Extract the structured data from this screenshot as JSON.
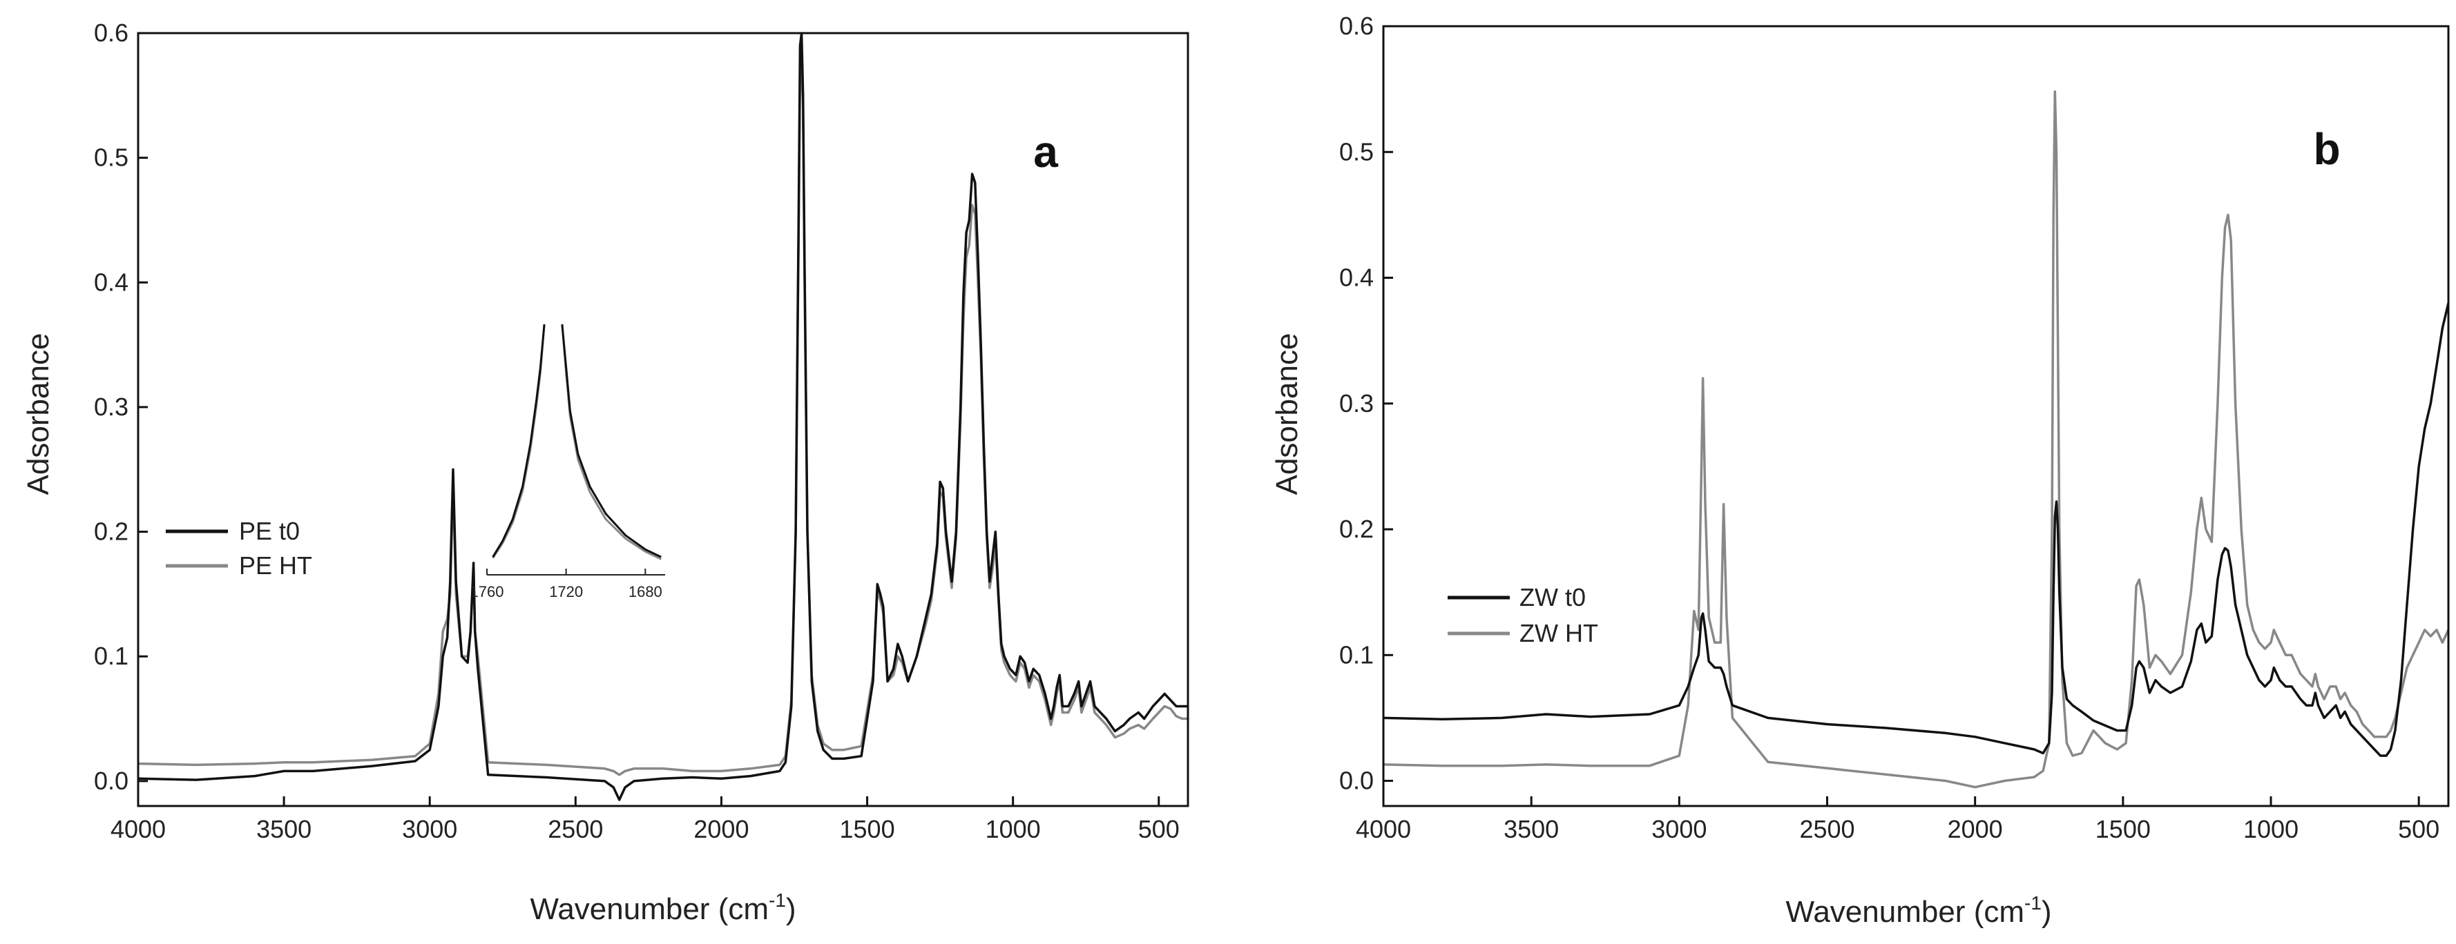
{
  "chart_data": [
    {
      "type": "line",
      "panel": "a",
      "xlabel_main": "Wavenumber (cm",
      "xlabel_sup": "-1",
      "xlabel_close": ")",
      "ylabel": "Adsorbance",
      "xlim": [
        4000,
        400
      ],
      "ylim": [
        -0.02,
        0.6
      ],
      "xticks": [
        4000,
        3500,
        3000,
        2500,
        2000,
        1500,
        1000,
        500
      ],
      "yticks": [
        0.0,
        0.1,
        0.2,
        0.3,
        0.4,
        0.5,
        0.6
      ],
      "ytick_labels": [
        "0.0",
        "0.1",
        "0.2",
        "0.3",
        "0.4",
        "0.5",
        "0.6"
      ],
      "legend_position": "middle-left",
      "series": [
        {
          "name": "PE t0",
          "color": "#111111",
          "x": [
            4000,
            3800,
            3600,
            3500,
            3400,
            3200,
            3050,
            3000,
            2970,
            2955,
            2940,
            2930,
            2920,
            2910,
            2890,
            2870,
            2860,
            2850,
            2845,
            2835,
            2800,
            2600,
            2400,
            2370,
            2350,
            2330,
            2300,
            2200,
            2100,
            2000,
            1900,
            1800,
            1780,
            1760,
            1745,
            1735,
            1730,
            1725,
            1720,
            1715,
            1705,
            1690,
            1670,
            1650,
            1620,
            1580,
            1520,
            1480,
            1465,
            1455,
            1445,
            1430,
            1410,
            1395,
            1380,
            1360,
            1330,
            1300,
            1280,
            1260,
            1250,
            1240,
            1230,
            1210,
            1195,
            1180,
            1170,
            1160,
            1150,
            1140,
            1130,
            1120,
            1110,
            1100,
            1090,
            1080,
            1070,
            1060,
            1050,
            1040,
            1030,
            1010,
            990,
            975,
            960,
            945,
            930,
            910,
            890,
            870,
            860,
            850,
            840,
            830,
            810,
            790,
            775,
            765,
            750,
            735,
            720,
            700,
            680,
            650,
            620,
            600,
            570,
            550,
            520,
            500,
            480,
            460,
            440,
            420,
            400
          ],
          "values": [
            0.002,
            0.001,
            0.004,
            0.008,
            0.008,
            0.012,
            0.016,
            0.025,
            0.06,
            0.1,
            0.115,
            0.16,
            0.25,
            0.16,
            0.1,
            0.095,
            0.12,
            0.175,
            0.12,
            0.09,
            0.005,
            0.003,
            0.0,
            -0.005,
            -0.015,
            -0.005,
            0.0,
            0.002,
            0.003,
            0.002,
            0.004,
            0.008,
            0.015,
            0.06,
            0.2,
            0.45,
            0.59,
            0.6,
            0.55,
            0.42,
            0.2,
            0.08,
            0.04,
            0.025,
            0.018,
            0.018,
            0.02,
            0.08,
            0.158,
            0.15,
            0.14,
            0.08,
            0.09,
            0.11,
            0.1,
            0.08,
            0.1,
            0.13,
            0.15,
            0.19,
            0.24,
            0.235,
            0.2,
            0.16,
            0.2,
            0.3,
            0.39,
            0.44,
            0.45,
            0.487,
            0.48,
            0.42,
            0.35,
            0.27,
            0.2,
            0.16,
            0.18,
            0.2,
            0.15,
            0.11,
            0.1,
            0.09,
            0.085,
            0.1,
            0.095,
            0.08,
            0.09,
            0.085,
            0.07,
            0.05,
            0.06,
            0.075,
            0.085,
            0.06,
            0.06,
            0.07,
            0.08,
            0.06,
            0.07,
            0.08,
            0.06,
            0.055,
            0.05,
            0.04,
            0.045,
            0.05,
            0.055,
            0.05,
            0.06,
            0.065,
            0.07,
            0.065,
            0.06,
            0.06,
            0.06
          ]
        },
        {
          "name": "PE HT",
          "color": "#888888",
          "x": [
            4000,
            3800,
            3600,
            3500,
            3400,
            3200,
            3050,
            3000,
            2970,
            2955,
            2940,
            2930,
            2920,
            2910,
            2890,
            2870,
            2860,
            2850,
            2845,
            2835,
            2800,
            2600,
            2400,
            2370,
            2350,
            2330,
            2300,
            2200,
            2100,
            2000,
            1900,
            1800,
            1780,
            1760,
            1745,
            1735,
            1730,
            1725,
            1720,
            1715,
            1705,
            1690,
            1670,
            1650,
            1620,
            1580,
            1520,
            1480,
            1465,
            1455,
            1445,
            1430,
            1410,
            1395,
            1380,
            1360,
            1330,
            1300,
            1280,
            1260,
            1250,
            1240,
            1230,
            1210,
            1195,
            1180,
            1170,
            1160,
            1150,
            1140,
            1130,
            1120,
            1110,
            1100,
            1090,
            1080,
            1070,
            1060,
            1050,
            1040,
            1030,
            1010,
            990,
            975,
            960,
            945,
            930,
            910,
            890,
            870,
            860,
            850,
            840,
            830,
            810,
            790,
            775,
            765,
            750,
            735,
            720,
            700,
            680,
            650,
            620,
            600,
            570,
            550,
            520,
            500,
            480,
            460,
            440,
            420,
            400
          ],
          "values": [
            0.014,
            0.013,
            0.014,
            0.015,
            0.015,
            0.017,
            0.02,
            0.03,
            0.07,
            0.12,
            0.13,
            0.15,
            0.24,
            0.15,
            0.1,
            0.1,
            0.12,
            0.17,
            0.12,
            0.1,
            0.015,
            0.013,
            0.01,
            0.008,
            0.005,
            0.008,
            0.01,
            0.01,
            0.008,
            0.008,
            0.01,
            0.013,
            0.02,
            0.065,
            0.2,
            0.44,
            0.57,
            0.575,
            0.54,
            0.41,
            0.2,
            0.085,
            0.045,
            0.03,
            0.025,
            0.025,
            0.028,
            0.085,
            0.152,
            0.145,
            0.135,
            0.08,
            0.085,
            0.1,
            0.095,
            0.08,
            0.1,
            0.125,
            0.145,
            0.185,
            0.232,
            0.228,
            0.195,
            0.155,
            0.195,
            0.29,
            0.37,
            0.42,
            0.43,
            0.462,
            0.455,
            0.4,
            0.34,
            0.26,
            0.195,
            0.155,
            0.17,
            0.19,
            0.145,
            0.105,
            0.095,
            0.085,
            0.08,
            0.095,
            0.09,
            0.075,
            0.085,
            0.08,
            0.065,
            0.045,
            0.055,
            0.07,
            0.08,
            0.055,
            0.055,
            0.065,
            0.075,
            0.055,
            0.065,
            0.075,
            0.055,
            0.05,
            0.045,
            0.035,
            0.038,
            0.042,
            0.045,
            0.042,
            0.05,
            0.055,
            0.06,
            0.058,
            0.052,
            0.05,
            0.05
          ]
        }
      ],
      "inset": {
        "xlim": [
          1760,
          1670
        ],
        "ylim": [
          0.12,
          0.34
        ],
        "xticks": [
          1760,
          1720,
          1680
        ],
        "xtick_labels": [
          "1760",
          "1720",
          "1680"
        ],
        "series": [
          {
            "name": "PE t0",
            "color": "#111111",
            "x": [
              1757,
              1752,
              1747,
              1742,
              1738,
              1735,
              1733,
              1731,
              1722,
              1720,
              1718,
              1714,
              1708,
              1700,
              1690,
              1680,
              1672
            ],
            "values": [
              0.125,
              0.14,
              0.16,
              0.19,
              0.23,
              0.27,
              0.3,
              0.34,
              0.34,
              0.3,
              0.26,
              0.22,
              0.19,
              0.165,
              0.145,
              0.132,
              0.125
            ]
          },
          {
            "name": "PE HT",
            "color": "#888888",
            "x": [
              1757,
              1752,
              1747,
              1742,
              1738,
              1735,
              1733,
              1731,
              1722,
              1720,
              1718,
              1714,
              1708,
              1700,
              1690,
              1680,
              1672
            ],
            "values": [
              0.124,
              0.138,
              0.157,
              0.186,
              0.225,
              0.265,
              0.295,
              0.34,
              0.34,
              0.295,
              0.255,
              0.215,
              0.185,
              0.16,
              0.142,
              0.13,
              0.123
            ]
          }
        ]
      }
    },
    {
      "type": "line",
      "panel": "b",
      "xlabel_main": "Wavenumber (cm",
      "xlabel_sup": "-1",
      "xlabel_close": ")",
      "ylabel": "Adsorbance",
      "xlim": [
        4000,
        400
      ],
      "ylim": [
        -0.02,
        0.6
      ],
      "xticks": [
        4000,
        3500,
        3000,
        2500,
        2000,
        1500,
        1000,
        500
      ],
      "yticks": [
        0.0,
        0.1,
        0.2,
        0.3,
        0.4,
        0.5,
        0.6
      ],
      "ytick_labels": [
        "0.0",
        "0.1",
        "0.2",
        "0.3",
        "0.4",
        "0.5",
        "0.6"
      ],
      "legend_position": "bottom-left",
      "series": [
        {
          "name": "ZW t0",
          "color": "#111111",
          "x": [
            4000,
            3800,
            3600,
            3450,
            3300,
            3100,
            3000,
            2970,
            2950,
            2935,
            2925,
            2920,
            2912,
            2900,
            2880,
            2860,
            2850,
            2840,
            2820,
            2700,
            2500,
            2300,
            2100,
            2000,
            1900,
            1800,
            1770,
            1750,
            1740,
            1735,
            1730,
            1725,
            1720,
            1715,
            1705,
            1690,
            1670,
            1640,
            1600,
            1560,
            1520,
            1490,
            1470,
            1455,
            1445,
            1430,
            1410,
            1390,
            1370,
            1340,
            1300,
            1270,
            1250,
            1235,
            1220,
            1200,
            1180,
            1165,
            1155,
            1145,
            1135,
            1120,
            1100,
            1080,
            1060,
            1040,
            1020,
            1000,
            990,
            970,
            950,
            930,
            900,
            880,
            860,
            850,
            840,
            820,
            800,
            780,
            765,
            750,
            730,
            710,
            690,
            670,
            650,
            630,
            610,
            595,
            580,
            560,
            540,
            520,
            500,
            480,
            460,
            440,
            420,
            400
          ],
          "values": [
            0.05,
            0.049,
            0.05,
            0.053,
            0.051,
            0.053,
            0.06,
            0.075,
            0.09,
            0.1,
            0.13,
            0.133,
            0.12,
            0.095,
            0.09,
            0.09,
            0.085,
            0.075,
            0.06,
            0.05,
            0.045,
            0.042,
            0.038,
            0.035,
            0.03,
            0.025,
            0.022,
            0.03,
            0.07,
            0.15,
            0.21,
            0.222,
            0.2,
            0.15,
            0.09,
            0.065,
            0.06,
            0.055,
            0.048,
            0.044,
            0.04,
            0.04,
            0.06,
            0.09,
            0.095,
            0.09,
            0.07,
            0.08,
            0.075,
            0.07,
            0.075,
            0.095,
            0.12,
            0.125,
            0.11,
            0.115,
            0.16,
            0.18,
            0.185,
            0.183,
            0.17,
            0.14,
            0.12,
            0.1,
            0.09,
            0.08,
            0.075,
            0.08,
            0.09,
            0.08,
            0.075,
            0.075,
            0.065,
            0.06,
            0.06,
            0.07,
            0.06,
            0.05,
            0.055,
            0.06,
            0.05,
            0.055,
            0.045,
            0.04,
            0.035,
            0.03,
            0.025,
            0.02,
            0.02,
            0.025,
            0.04,
            0.08,
            0.14,
            0.2,
            0.25,
            0.28,
            0.3,
            0.33,
            0.36,
            0.38
          ]
        },
        {
          "name": "ZW HT",
          "color": "#888888",
          "x": [
            4000,
            3800,
            3600,
            3450,
            3300,
            3100,
            3000,
            2970,
            2950,
            2935,
            2925,
            2920,
            2912,
            2900,
            2880,
            2860,
            2850,
            2840,
            2820,
            2700,
            2500,
            2300,
            2100,
            2000,
            1900,
            1800,
            1770,
            1750,
            1740,
            1735,
            1730,
            1725,
            1720,
            1715,
            1705,
            1690,
            1670,
            1640,
            1600,
            1560,
            1520,
            1490,
            1470,
            1455,
            1445,
            1430,
            1410,
            1390,
            1370,
            1340,
            1300,
            1270,
            1250,
            1235,
            1220,
            1200,
            1180,
            1165,
            1155,
            1145,
            1135,
            1120,
            1100,
            1080,
            1060,
            1040,
            1020,
            1000,
            990,
            970,
            950,
            930,
            900,
            880,
            860,
            850,
            840,
            820,
            800,
            780,
            765,
            750,
            730,
            710,
            690,
            670,
            650,
            630,
            610,
            595,
            580,
            560,
            540,
            520,
            500,
            480,
            460,
            440,
            420,
            400
          ],
          "values": [
            0.013,
            0.012,
            0.012,
            0.013,
            0.012,
            0.012,
            0.02,
            0.06,
            0.135,
            0.12,
            0.25,
            0.32,
            0.22,
            0.13,
            0.11,
            0.11,
            0.22,
            0.13,
            0.05,
            0.015,
            0.01,
            0.005,
            0.0,
            -0.005,
            0.0,
            0.003,
            0.008,
            0.03,
            0.2,
            0.45,
            0.548,
            0.5,
            0.35,
            0.2,
            0.08,
            0.03,
            0.02,
            0.022,
            0.04,
            0.03,
            0.025,
            0.03,
            0.08,
            0.155,
            0.16,
            0.14,
            0.09,
            0.1,
            0.095,
            0.085,
            0.1,
            0.15,
            0.2,
            0.225,
            0.2,
            0.19,
            0.3,
            0.4,
            0.44,
            0.45,
            0.43,
            0.3,
            0.2,
            0.14,
            0.12,
            0.11,
            0.105,
            0.11,
            0.12,
            0.11,
            0.1,
            0.1,
            0.085,
            0.08,
            0.075,
            0.085,
            0.075,
            0.065,
            0.075,
            0.075,
            0.065,
            0.07,
            0.06,
            0.055,
            0.045,
            0.04,
            0.035,
            0.035,
            0.035,
            0.04,
            0.05,
            0.07,
            0.09,
            0.1,
            0.11,
            0.12,
            0.115,
            0.12,
            0.11,
            0.12
          ]
        }
      ]
    }
  ]
}
